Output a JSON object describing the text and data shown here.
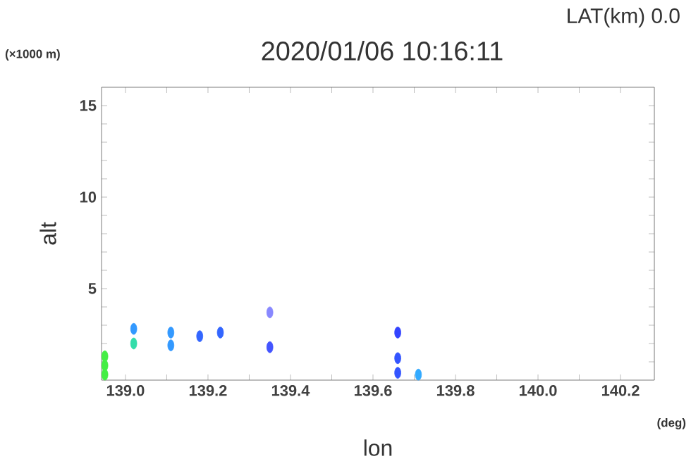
{
  "chart_data": {
    "type": "scatter",
    "title": "2020/01/06 10:16:11",
    "subtitle": "LAT(km) 0.0",
    "xlabel": "lon",
    "ylabel": "alt",
    "annotations": [
      "(×1000 m)",
      "(deg)"
    ],
    "grid": false,
    "xlim": [
      138.942,
      140.282
    ],
    "ylim": [
      0,
      16
    ],
    "xticks": [
      {
        "value": 139.0,
        "label": "139.0"
      },
      {
        "value": 139.1,
        "label": null
      },
      {
        "value": 139.2,
        "label": "139.2"
      },
      {
        "value": 139.3,
        "label": null
      },
      {
        "value": 139.4,
        "label": "139.4"
      },
      {
        "value": 139.5,
        "label": null
      },
      {
        "value": 139.6,
        "label": "139.6"
      },
      {
        "value": 139.7,
        "label": null
      },
      {
        "value": 139.8,
        "label": "139.8"
      },
      {
        "value": 139.9,
        "label": null
      },
      {
        "value": 140.0,
        "label": "140.0"
      },
      {
        "value": 140.1,
        "label": null
      },
      {
        "value": 140.2,
        "label": "140.2"
      }
    ],
    "yticks": [
      {
        "value": 1,
        "label": null
      },
      {
        "value": 2,
        "label": null
      },
      {
        "value": 3,
        "label": null
      },
      {
        "value": 4,
        "label": null
      },
      5,
      {
        "value": 6,
        "label": null
      },
      {
        "value": 7,
        "label": null
      },
      {
        "value": 8,
        "label": null
      },
      {
        "value": 9,
        "label": null
      },
      10,
      {
        "value": 11,
        "label": null
      },
      {
        "value": 12,
        "label": null
      },
      {
        "value": 13,
        "label": null
      },
      {
        "value": 14,
        "label": null
      },
      15
    ],
    "series": [
      {
        "x": [
          138.95,
          138.95,
          138.95,
          139.02,
          139.02,
          139.11,
          139.11,
          139.18,
          139.23,
          139.35,
          139.35,
          139.66,
          139.66,
          139.66,
          139.71
        ],
        "values": [
          0.3,
          0.8,
          1.3,
          2.0,
          2.8,
          1.9,
          2.6,
          2.4,
          2.6,
          3.7,
          1.8,
          2.6,
          1.2,
          0.4,
          0.3
        ],
        "colors": [
          "#44ee44",
          "#44ee44",
          "#44ee44",
          "#33ddaa",
          "#3399ff",
          "#3399ff",
          "#3399ff",
          "#3366ff",
          "#3366ff",
          "#8888ff",
          "#4455ff",
          "#3344ff",
          "#3355ff",
          "#3355ff",
          "#33aaff"
        ]
      }
    ]
  }
}
